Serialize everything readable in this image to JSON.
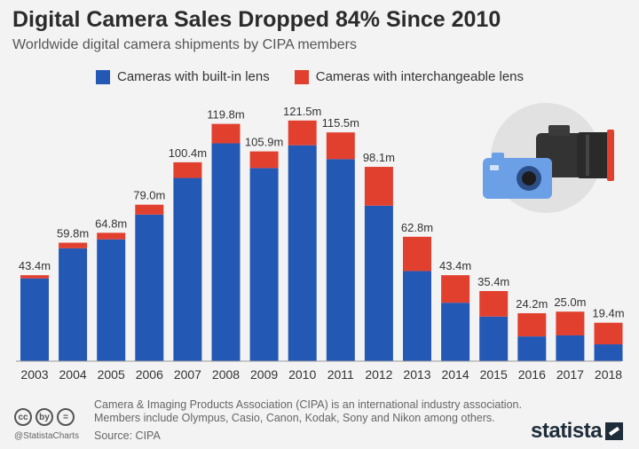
{
  "header": {
    "title": "Digital Camera Sales Dropped 84% Since 2010",
    "subtitle": "Worldwide digital camera shipments by CIPA members"
  },
  "footer": {
    "note": "Camera & Imaging Products Association (CIPA) is an international industry association. Members include Olympus, Casio, Canon, Kodak, Sony and Nikon among others.",
    "source": "Source: CIPA",
    "handle": "@StatistaCharts",
    "brand": "statista",
    "license_icons": [
      "cc",
      "by",
      "="
    ]
  },
  "illustration": {
    "icon": "camera-illustration-icon"
  },
  "colors": {
    "built_in": "#2458b5",
    "interchangeable": "#e2402f",
    "background": "#f3f3f3"
  },
  "chart_data": {
    "type": "bar",
    "stacked": true,
    "categories": [
      "2003",
      "2004",
      "2005",
      "2006",
      "2007",
      "2008",
      "2009",
      "2010",
      "2011",
      "2012",
      "2013",
      "2014",
      "2015",
      "2016",
      "2017",
      "2018"
    ],
    "series": [
      {
        "name": "Cameras with built-in lens",
        "color": "#2458b5",
        "values": [
          41.8,
          57.0,
          61.5,
          74.0,
          92.5,
          110.0,
          97.5,
          109.0,
          102.0,
          78.5,
          45.5,
          29.5,
          22.5,
          12.5,
          13.0,
          8.5
        ]
      },
      {
        "name": "Cameras with interchangeable lens",
        "color": "#e2402f",
        "values": [
          1.6,
          2.8,
          3.3,
          5.0,
          7.9,
          9.8,
          8.4,
          12.5,
          13.5,
          19.6,
          17.3,
          13.9,
          12.9,
          11.7,
          12.0,
          10.9
        ]
      }
    ],
    "totals_labels": [
      "43.4m",
      "59.8m",
      "64.8m",
      "79.0m",
      "100.4m",
      "119.8m",
      "105.9m",
      "121.5m",
      "115.5m",
      "98.1m",
      "62.8m",
      "43.4m",
      "35.4m",
      "24.2m",
      "25.0m",
      "19.4m"
    ],
    "totals": [
      43.4,
      59.8,
      64.8,
      79.0,
      100.4,
      119.8,
      105.9,
      121.5,
      115.5,
      98.1,
      62.8,
      43.4,
      35.4,
      24.2,
      25.0,
      19.4
    ],
    "unit": "m",
    "ylim": [
      0,
      125
    ],
    "grid": false,
    "legend_position": "top"
  }
}
